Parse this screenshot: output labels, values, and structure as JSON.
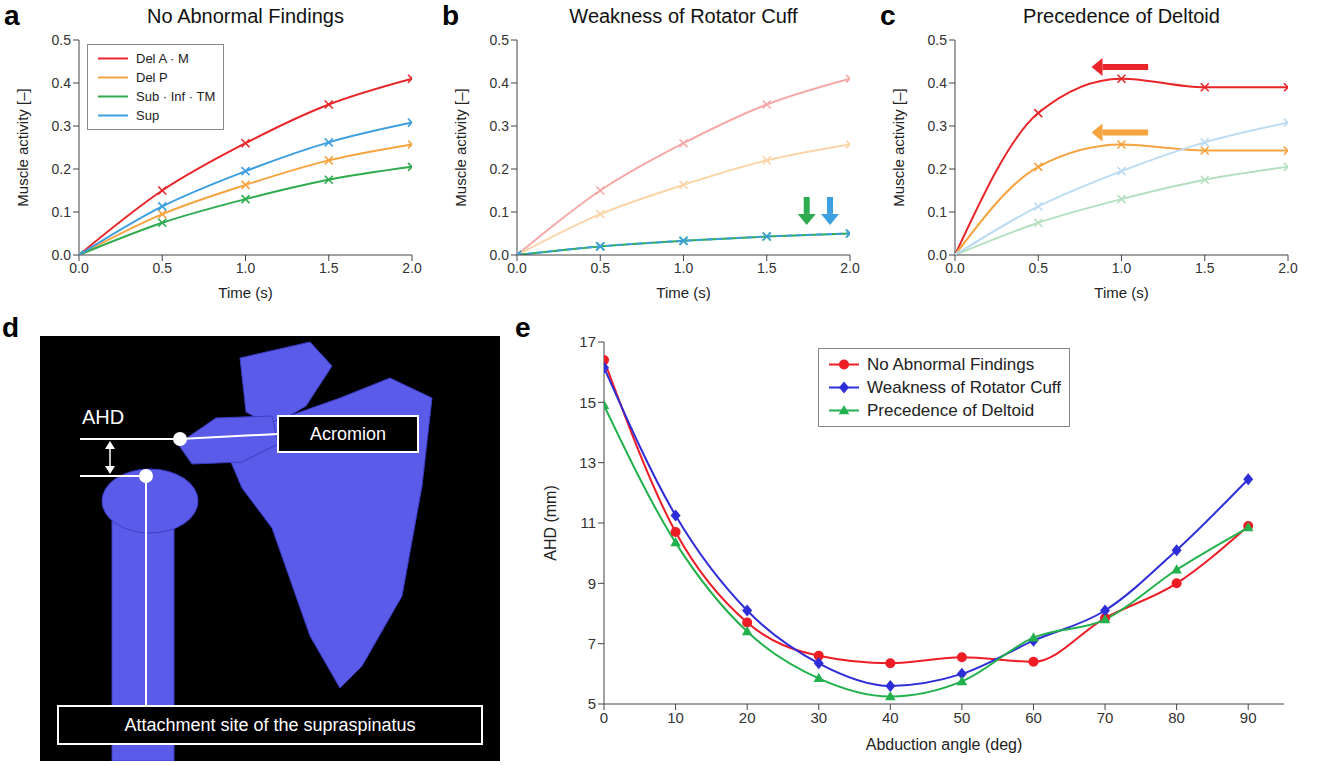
{
  "chart_data": [
    {
      "panel": "a",
      "type": "line",
      "title": "No Abnormal Findings",
      "x_label": "Time (s)",
      "y_label": "Muscle activity [–]",
      "x": [
        0,
        0.5,
        1,
        1.5,
        2
      ],
      "xlim": [
        0,
        2
      ],
      "xticks": [
        {
          "value": 0,
          "label": "0.0"
        },
        0.5,
        {
          "value": 1,
          "label": "1.0"
        },
        1.5,
        {
          "value": 2,
          "label": "2.0"
        }
      ],
      "ylim": [
        0,
        0.5
      ],
      "yticks": [
        {
          "value": 0,
          "label": "0.0"
        },
        0.1,
        0.2,
        0.3,
        0.4,
        0.5
      ],
      "legend": "top left",
      "series": [
        {
          "name": "Del A · M",
          "color": "#e8262a",
          "marker": "x",
          "values": [
            0,
            0.15,
            0.26,
            0.35,
            0.41
          ]
        },
        {
          "name": "Del P",
          "color": "#f7a33f",
          "marker": "x",
          "values": [
            0,
            0.095,
            0.163,
            0.22,
            0.257
          ]
        },
        {
          "name": "Sub · Inf · TM",
          "color": "#2eab4e",
          "marker": "x",
          "values": [
            0,
            0.075,
            0.13,
            0.175,
            0.205
          ]
        },
        {
          "name": "Sup",
          "color": "#3d9fe0",
          "marker": "x",
          "values": [
            0,
            0.113,
            0.195,
            0.262,
            0.308
          ]
        }
      ]
    },
    {
      "panel": "b",
      "type": "line",
      "title": "Weakness of Rotator Cuff",
      "x_label": "Time (s)",
      "y_label": "Muscle activity [–]",
      "x": [
        0,
        0.5,
        1,
        1.5,
        2
      ],
      "xlim": [
        0,
        2
      ],
      "xticks": [
        {
          "value": 0,
          "label": "0.0"
        },
        0.5,
        {
          "value": 1,
          "label": "1.0"
        },
        1.5,
        {
          "value": 2,
          "label": "2.0"
        }
      ],
      "ylim": [
        0,
        0.5
      ],
      "yticks": [
        {
          "value": 0,
          "label": "0.0"
        },
        0.1,
        0.2,
        0.3,
        0.4,
        0.5
      ],
      "series": [
        {
          "color": "#f5a8a6",
          "marker": "x",
          "values": [
            0,
            0.15,
            0.26,
            0.35,
            0.41
          ]
        },
        {
          "color": "#fbd4a8",
          "marker": "x",
          "values": [
            0,
            0.095,
            0.163,
            0.22,
            0.257
          ]
        },
        {
          "color": "#2eab4e",
          "marker": "x",
          "values": [
            0,
            0.02,
            0.033,
            0.043,
            0.05
          ]
        },
        {
          "color": "#3d9fe0",
          "marker": "x",
          "line_style": "dashed",
          "values": [
            0,
            0.02,
            0.033,
            0.043,
            0.05
          ]
        }
      ]
    },
    {
      "panel": "c",
      "type": "line",
      "title": "Precedence of Deltoid",
      "x_label": "Time (s)",
      "y_label": "Muscle activity [–]",
      "x": [
        0,
        0.5,
        1,
        1.5,
        2
      ],
      "xlim": [
        0,
        2
      ],
      "xticks": [
        {
          "value": 0,
          "label": "0.0"
        },
        0.5,
        {
          "value": 1,
          "label": "1.0"
        },
        1.5,
        {
          "value": 2,
          "label": "2.0"
        }
      ],
      "ylim": [
        0,
        0.5
      ],
      "yticks": [
        {
          "value": 0,
          "label": "0.0"
        },
        0.1,
        0.2,
        0.3,
        0.4,
        0.5
      ],
      "series": [
        {
          "color": "#e8262a",
          "marker": "x",
          "values": [
            0,
            0.33,
            0.41,
            0.39,
            0.39
          ]
        },
        {
          "color": "#f7a33f",
          "marker": "x",
          "values": [
            0,
            0.205,
            0.257,
            0.243,
            0.243
          ]
        },
        {
          "color": "#b5e0c0",
          "marker": "x",
          "values": [
            0,
            0.075,
            0.13,
            0.175,
            0.205
          ]
        },
        {
          "color": "#bcdcf3",
          "marker": "x",
          "values": [
            0,
            0.113,
            0.195,
            0.262,
            0.308
          ]
        }
      ]
    },
    {
      "panel": "e",
      "type": "line",
      "x_label": "Abduction angle (deg)",
      "y_label": "AHD (mm)",
      "x": [
        0,
        10,
        20,
        30,
        40,
        50,
        60,
        70,
        80,
        90
      ],
      "xlim": [
        0,
        95
      ],
      "xticks": [
        0,
        10,
        20,
        30,
        40,
        50,
        60,
        70,
        80,
        90
      ],
      "ylim": [
        5,
        17
      ],
      "yticks": [
        5,
        7,
        9,
        11,
        13,
        15,
        17
      ],
      "legend": "top",
      "series": [
        {
          "name": "No Abnormal Findings",
          "color": "#ee1c25",
          "marker": "circle",
          "values": [
            16.4,
            10.7,
            7.7,
            6.6,
            6.35,
            6.55,
            6.4,
            7.85,
            9.0,
            10.9
          ]
        },
        {
          "name": "Weakness of Rotator Cuff",
          "color": "#2e2ed8",
          "marker": "diamond",
          "values": [
            16.15,
            11.25,
            8.1,
            6.35,
            5.6,
            6.0,
            7.1,
            8.1,
            10.1,
            12.45
          ]
        },
        {
          "name": "Precedence of Deltoid",
          "color": "#22b14c",
          "marker": "triangle",
          "values": [
            14.9,
            10.35,
            7.4,
            5.85,
            5.25,
            5.75,
            7.2,
            7.8,
            9.45,
            10.85
          ]
        }
      ]
    }
  ],
  "diagram": {
    "panel": "d",
    "ahd": "AHD",
    "acromion": "Acromion",
    "attachment": "Attachment site of the supraspinatus"
  }
}
